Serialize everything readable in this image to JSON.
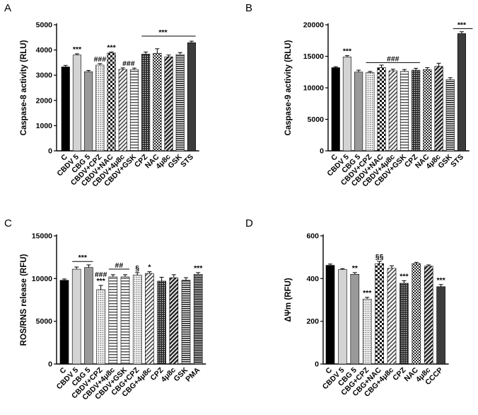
{
  "chart_data": [
    {
      "panel": "A",
      "type": "bar",
      "ylabel": "Caspase-8 activity (RLU)",
      "ylim": [
        0,
        5000
      ],
      "yticks": [
        0,
        1000,
        2000,
        3000,
        4000,
        5000
      ],
      "categories": [
        "C",
        "CBDV 5",
        "CBG 5",
        "CBDV+CPZ",
        "CBDV+NAC",
        "CBDV+4μ8c",
        "CBDV+GSK",
        "CPZ",
        "NAC",
        "4μ8c",
        "GSK",
        "STS"
      ],
      "values": [
        3330,
        3800,
        3140,
        3400,
        3880,
        3230,
        3220,
        3840,
        3870,
        3730,
        3820,
        4290
      ],
      "errors": [
        60,
        50,
        50,
        60,
        40,
        60,
        60,
        80,
        180,
        70,
        80,
        60
      ],
      "patterns": [
        "solid-black",
        "light-gray",
        "mid-gray",
        "dots",
        "checker",
        "diag",
        "hstripe",
        "dark-dots",
        "white-dots",
        "dark-diag",
        "dark-hstripe",
        "dark-gray"
      ],
      "annotations": [
        {
          "text": "***",
          "bar": 1
        },
        {
          "text": "###",
          "bar": 3
        },
        {
          "text": "***",
          "bar": 4
        },
        {
          "text": "###",
          "bar": 5.5
        },
        {
          "text": "***",
          "bar": 8.5,
          "line": [
            7,
            11
          ],
          "y": 4550
        }
      ]
    },
    {
      "panel": "B",
      "type": "bar",
      "ylabel": "Caspase-9 activity (RLU)",
      "ylim": [
        0,
        20000
      ],
      "yticks": [
        0,
        5000,
        10000,
        15000,
        20000
      ],
      "categories": [
        "C",
        "CBDV 5",
        "CBG 5",
        "CBDV+CPZ",
        "CBDV+NAC",
        "CBDV+4μ8c",
        "CBDV+GSK",
        "CPZ",
        "NAC",
        "4μ8c",
        "GSK",
        "STS"
      ],
      "values": [
        13200,
        14900,
        12500,
        12400,
        13200,
        12700,
        12600,
        12800,
        12900,
        13400,
        11300,
        18600
      ],
      "errors": [
        150,
        200,
        300,
        200,
        400,
        250,
        300,
        300,
        300,
        500,
        300,
        300
      ],
      "patterns": [
        "solid-black",
        "light-gray",
        "mid-gray",
        "dots",
        "checker",
        "diag",
        "hstripe",
        "dark-dots",
        "white-dots",
        "dark-diag",
        "dark-hstripe",
        "dark-gray"
      ],
      "annotations": [
        {
          "text": "***",
          "bar": 1
        },
        {
          "text": "###",
          "bar": 5,
          "line": [
            3,
            7
          ],
          "y": 14000
        },
        {
          "text": "***",
          "bar": 11,
          "line": [
            10.6,
            11.6
          ],
          "y": 19400
        }
      ]
    },
    {
      "panel": "C",
      "type": "bar",
      "ylabel": "ROS/RNS release (RFU)",
      "ylim": [
        0,
        15000
      ],
      "yticks": [
        0,
        5000,
        10000,
        15000
      ],
      "categories": [
        "C",
        "CBDV 5",
        "CBG 5",
        "CBDV+CPZ",
        "CBDV+4μ8c",
        "CBDV+GSK",
        "CBG+CPZ",
        "CBG+4μ8c",
        "CPZ",
        "4μ8c",
        "GSK",
        "PMA"
      ],
      "values": [
        9800,
        11100,
        11300,
        8700,
        10200,
        10200,
        10400,
        10600,
        9700,
        10100,
        9800,
        10500
      ],
      "errors": [
        150,
        250,
        300,
        500,
        250,
        250,
        300,
        200,
        450,
        350,
        300,
        200
      ],
      "patterns": [
        "solid-black",
        "light-gray",
        "mid-gray",
        "dots",
        "hstripe",
        "hstripe",
        "dots",
        "diag",
        "dark-dots",
        "dark-diag",
        "dark-hstripe",
        "dense-hstripe"
      ],
      "annotations": [
        {
          "text": "***",
          "bar": 1.5,
          "line": [
            1,
            2
          ],
          "y": 12000
        },
        {
          "text": "###",
          "bar": 3,
          "dy": -9
        },
        {
          "text": "***",
          "bar": 3,
          "dy": 0
        },
        {
          "text": "##",
          "bar": 4.5,
          "line": [
            4,
            5
          ],
          "y": 11100
        },
        {
          "text": "§",
          "bar": 6
        },
        {
          "text": "*",
          "bar": 7
        },
        {
          "text": "***",
          "bar": 11
        }
      ]
    },
    {
      "panel": "D",
      "type": "bar",
      "ylabel": "ΔΨm (RFU)",
      "ylim": [
        0,
        600
      ],
      "yticks": [
        0,
        200,
        400,
        600
      ],
      "categories": [
        "C",
        "CBDV 5",
        "CBG 5",
        "CBG+CPZ",
        "CBG+NAC",
        "CBG+4μ8c",
        "CPZ",
        "NAC",
        "4μ8c",
        "CCCP"
      ],
      "values": [
        462,
        442,
        420,
        304,
        470,
        448,
        378,
        470,
        458,
        362
      ],
      "errors": [
        6,
        4,
        8,
        8,
        10,
        12,
        12,
        6,
        6,
        10
      ],
      "patterns": [
        "solid-black",
        "light-gray",
        "mid-gray",
        "dots",
        "checker",
        "diag",
        "dark-dots",
        "white-dots",
        "dark-diag",
        "dark-gray"
      ],
      "annotations": [
        {
          "text": "**",
          "bar": 2
        },
        {
          "text": "***",
          "bar": 3
        },
        {
          "text": "§§",
          "bar": 4
        },
        {
          "text": "***",
          "bar": 6
        },
        {
          "text": "***",
          "bar": 9
        }
      ]
    }
  ]
}
